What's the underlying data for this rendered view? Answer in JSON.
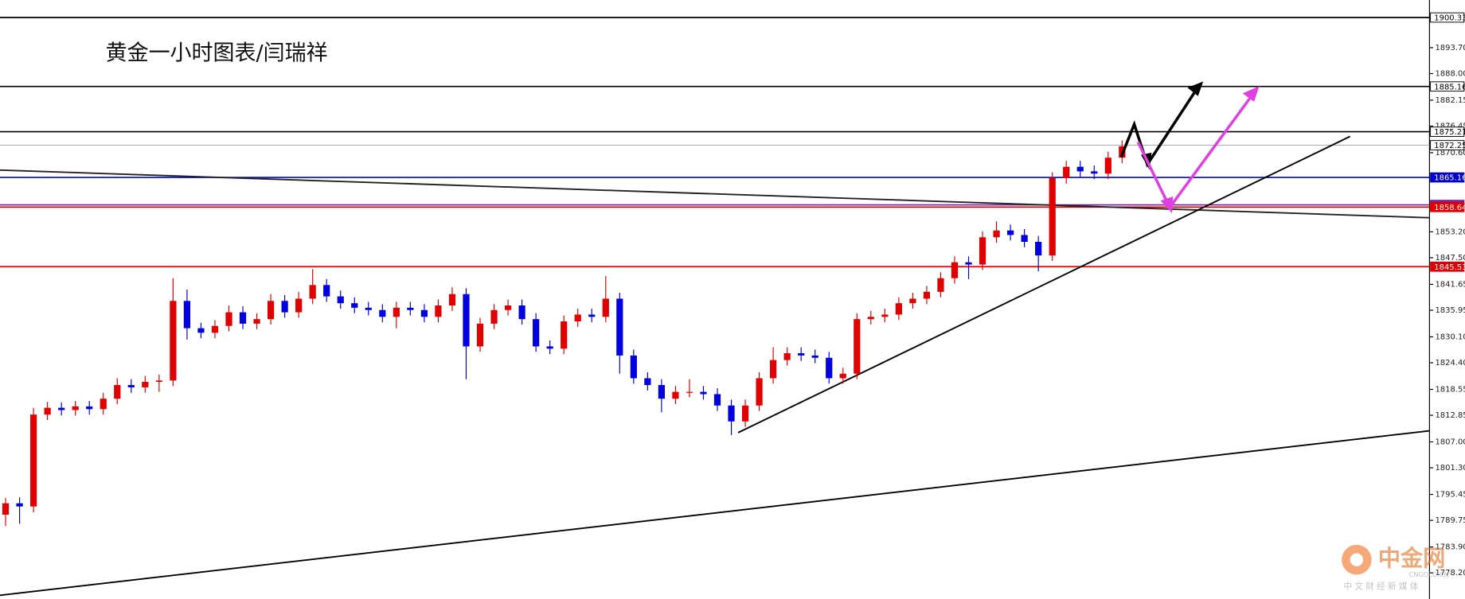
{
  "chart_data": {
    "type": "candlestick",
    "title": "黄金一小时图表/闫瑞祥",
    "ylim": [
      1772.45,
      1904.18
    ],
    "yticks": [
      {
        "value": 1893.7,
        "label": "1893.70"
      },
      {
        "value": 1888,
        "label": "1888.00"
      },
      1882.15,
      1876.45,
      {
        "value": 1870.6,
        "label": "1870.60"
      },
      {
        "value": 1853.2,
        "label": "1853.20"
      },
      {
        "value": 1847.5,
        "label": "1847.50"
      },
      1841.65,
      1835.95,
      {
        "value": 1830.1,
        "label": "1830.10"
      },
      {
        "value": 1824.4,
        "label": "1824.40"
      },
      1818.55,
      1812.85,
      {
        "value": 1807,
        "label": "1807.00"
      },
      {
        "value": 1801.3,
        "label": "1801.30"
      },
      1795.45,
      1789.75,
      {
        "value": 1783.9,
        "label": "1783.90"
      },
      {
        "value": 1778.2,
        "label": "1778.20"
      }
    ],
    "up_color": "#e00000",
    "down_color": "#0000e0",
    "open": [
      1791.0,
      1793.5,
      1792.8,
      1813.0,
      1814.5,
      1814.0,
      1814.8,
      1814.2,
      1816.5,
      1819.5,
      1819.0,
      1820.2,
      1820.5,
      1838.0,
      1832.0,
      1831.0,
      1832.5,
      1835.5,
      1833.0,
      1834.0,
      1838.0,
      1835.5,
      1838.5,
      1841.5,
      1839.0,
      1837.5,
      1836.5,
      1836.0,
      1834.5,
      1836.5,
      1836.0,
      1834.5,
      1837.0,
      1839.5,
      1828.0,
      1833.0,
      1836.0,
      1837.0,
      1834.0,
      1828.0,
      1827.5,
      1833.5,
      1835.0,
      1834.5,
      1838.5,
      1826.0,
      1821.0,
      1819.5,
      1816.5,
      1818.0,
      1818.0,
      1817.5,
      1815.0,
      1811.5,
      1815.0,
      1821.0,
      1825.0,
      1826.5,
      1826.0,
      1825.5,
      1821.0,
      1822.0,
      1834.0,
      1834.5,
      1835.0,
      1837.5,
      1838.5,
      1840.0,
      1843.0,
      1846.5,
      1846.0,
      1852.0,
      1853.5,
      1852.5,
      1851.0,
      1848.0,
      1865.0,
      1867.5,
      1866.5,
      1866.0,
      1869.5
    ],
    "high": [
      1794.7,
      1794.8,
      1814.5,
      1815.8,
      1815.7,
      1816.0,
      1816.0,
      1817.8,
      1821.0,
      1820.8,
      1821.5,
      1821.8,
      1843.0,
      1840.5,
      1833.2,
      1833.8,
      1837.0,
      1836.8,
      1835.3,
      1839.5,
      1839.3,
      1840.0,
      1845.0,
      1842.8,
      1840.3,
      1838.8,
      1837.8,
      1837.3,
      1837.8,
      1837.8,
      1837.3,
      1838.3,
      1841.0,
      1840.8,
      1834.3,
      1837.3,
      1838.3,
      1838.3,
      1835.3,
      1829.3,
      1834.8,
      1836.3,
      1836.3,
      1843.5,
      1839.8,
      1827.3,
      1822.3,
      1820.8,
      1819.3,
      1820.8,
      1819.3,
      1818.8,
      1816.3,
      1816.3,
      1822.3,
      1827.8,
      1827.8,
      1827.8,
      1827.3,
      1826.8,
      1823.3,
      1835.3,
      1835.8,
      1836.3,
      1838.8,
      1839.8,
      1841.3,
      1844.3,
      1847.8,
      1847.8,
      1853.3,
      1855.5,
      1854.8,
      1853.8,
      1852.3,
      1866.3,
      1868.8,
      1868.8,
      1867.8,
      1870.8,
      1873.3
    ],
    "low": [
      1788.5,
      1789.0,
      1791.5,
      1811.8,
      1812.8,
      1812.8,
      1813.0,
      1813.0,
      1815.3,
      1817.8,
      1817.8,
      1818.0,
      1819.3,
      1829.5,
      1829.8,
      1829.8,
      1831.3,
      1831.8,
      1831.8,
      1832.8,
      1834.3,
      1834.3,
      1837.3,
      1837.8,
      1836.3,
      1835.3,
      1834.8,
      1833.3,
      1832.0,
      1834.8,
      1833.3,
      1833.3,
      1835.8,
      1820.8,
      1826.8,
      1831.8,
      1834.8,
      1832.8,
      1826.8,
      1826.3,
      1826.3,
      1832.3,
      1833.3,
      1833.3,
      1822.0,
      1819.8,
      1818.3,
      1813.5,
      1815.3,
      1816.8,
      1816.3,
      1813.8,
      1808.5,
      1810.3,
      1813.8,
      1819.8,
      1823.8,
      1824.8,
      1824.3,
      1819.8,
      1819.8,
      1820.8,
      1832.8,
      1833.3,
      1833.8,
      1836.3,
      1837.3,
      1838.8,
      1841.8,
      1842.8,
      1844.8,
      1850.8,
      1851.3,
      1849.8,
      1844.5,
      1846.8,
      1863.8,
      1865.3,
      1864.8,
      1864.8,
      1868.3
    ],
    "close": [
      1793.5,
      1792.8,
      1813.0,
      1814.5,
      1814.0,
      1814.8,
      1814.2,
      1816.5,
      1819.5,
      1819.0,
      1820.2,
      1820.5,
      1838.0,
      1832.0,
      1831.0,
      1832.5,
      1835.5,
      1833.0,
      1834.0,
      1838.0,
      1835.5,
      1838.5,
      1841.5,
      1839.0,
      1837.5,
      1836.5,
      1836.0,
      1834.5,
      1836.5,
      1836.0,
      1834.5,
      1837.0,
      1839.5,
      1828.0,
      1833.0,
      1836.0,
      1837.0,
      1834.0,
      1828.0,
      1827.5,
      1833.5,
      1835.0,
      1834.5,
      1838.5,
      1826.0,
      1821.0,
      1819.5,
      1816.5,
      1818.0,
      1818.0,
      1817.5,
      1815.0,
      1811.5,
      1815.0,
      1821.0,
      1825.0,
      1826.5,
      1826.0,
      1825.5,
      1821.0,
      1822.0,
      1834.0,
      1834.5,
      1835.0,
      1837.5,
      1838.5,
      1840.0,
      1843.0,
      1846.5,
      1846.0,
      1852.0,
      1853.5,
      1852.5,
      1851.0,
      1848.0,
      1865.0,
      1867.5,
      1866.5,
      1866.0,
      1869.5,
      1872.0
    ],
    "hlines": [
      {
        "value": 1900.33,
        "color": "#000000"
      },
      {
        "value": 1885.16,
        "color": "#000000"
      },
      {
        "value": 1875.21,
        "color": "#000000"
      },
      {
        "value": 1872.25,
        "color": "#aaaaaa"
      },
      {
        "value": 1865.16,
        "color": "#0000cc"
      },
      {
        "value": 1859.12,
        "color": "#7a1fa2"
      },
      {
        "value": 1858.64,
        "color": "#e00000"
      },
      {
        "value": 1845.53,
        "color": "#e00000"
      }
    ],
    "watermark": {
      "brand": "中金网",
      "site": "CNGOLD.CN",
      "slogan": "中 文 财 经 新 媒 体"
    }
  }
}
